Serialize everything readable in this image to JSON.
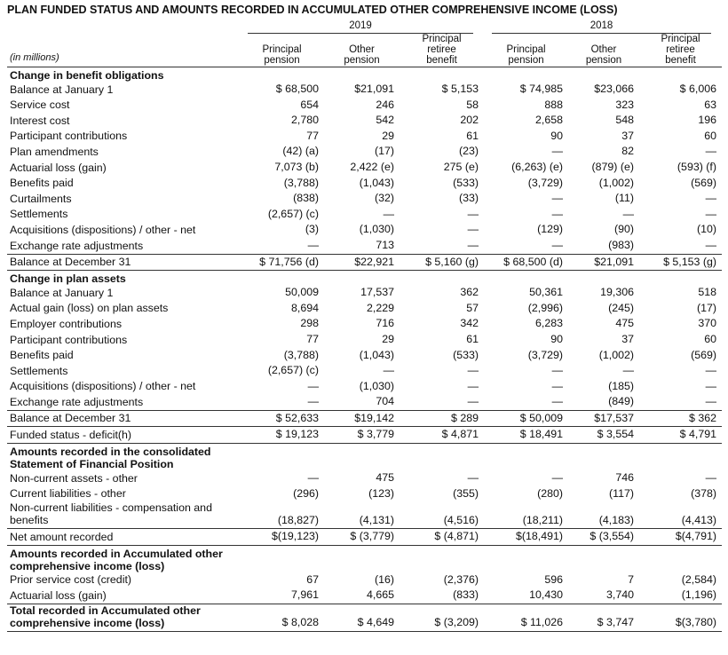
{
  "title": "PLAN FUNDED STATUS AND AMOUNTS RECORDED IN ACCUMULATED OTHER COMPREHENSIVE INCOME (LOSS)",
  "unit_note": "(in millions)",
  "years": [
    "2019",
    "2018"
  ],
  "column_headers": [
    "Principal pension",
    "Other pension",
    "Principal retiree benefit",
    "Principal pension",
    "Other pension",
    "Principal retiree benefit"
  ],
  "rows": [
    {
      "section": "Change in benefit obligations"
    },
    {
      "label": "Balance at January 1",
      "cells": [
        "$ 68,500",
        "$21,091",
        "$ 5,153",
        "$ 74,985",
        "$23,066",
        "$ 6,006"
      ]
    },
    {
      "label": "Service cost",
      "cells": [
        "654",
        "246",
        "58",
        "888",
        "323",
        "63"
      ]
    },
    {
      "label": "Interest cost",
      "cells": [
        "2,780",
        "542",
        "202",
        "2,658",
        "548",
        "196"
      ]
    },
    {
      "label": "Participant contributions",
      "cells": [
        "77",
        "29",
        "61",
        "90",
        "37",
        "60"
      ]
    },
    {
      "label": "Plan amendments",
      "cells": [
        "(42) (a)",
        "(17)",
        "(23)",
        "—",
        "82",
        "—"
      ]
    },
    {
      "label": "Actuarial loss (gain)",
      "cells": [
        "7,073 (b)",
        "2,422 (e)",
        "275 (e)",
        "(6,263) (e)",
        "(879) (e)",
        "(593) (f)"
      ]
    },
    {
      "label": "Benefits paid",
      "cells": [
        "(3,788)",
        "(1,043)",
        "(533)",
        "(3,729)",
        "(1,002)",
        "(569)"
      ]
    },
    {
      "label": "Curtailments",
      "cells": [
        "(838)",
        "(32)",
        "(33)",
        "—",
        "(11)",
        "—"
      ]
    },
    {
      "label": "Settlements",
      "cells": [
        "(2,657) (c)",
        "—",
        "—",
        "—",
        "—",
        "—"
      ]
    },
    {
      "label": "Acquisitions (dispositions) / other - net",
      "cells": [
        "(3)",
        "(1,030)",
        "—",
        "(129)",
        "(90)",
        "(10)"
      ]
    },
    {
      "label": "Exchange rate adjustments",
      "cells": [
        "—",
        "713",
        "—",
        "—",
        "(983)",
        "—"
      ]
    },
    {
      "label": "Balance at December 31",
      "cells": [
        "$ 71,756 (d)",
        "$22,921",
        "$ 5,160 (g)",
        "$ 68,500 (d)",
        "$21,091",
        "$ 5,153 (g)"
      ]
    },
    {
      "section": "Change in plan assets"
    },
    {
      "label": "Balance at January 1",
      "cells": [
        "50,009",
        "17,537",
        "362",
        "50,361",
        "19,306",
        "518"
      ]
    },
    {
      "label": "Actual gain (loss) on plan assets",
      "cells": [
        "8,694",
        "2,229",
        "57",
        "(2,996)",
        "(245)",
        "(17)"
      ]
    },
    {
      "label": "Employer contributions",
      "cells": [
        "298",
        "716",
        "342",
        "6,283",
        "475",
        "370"
      ]
    },
    {
      "label": "Participant contributions",
      "cells": [
        "77",
        "29",
        "61",
        "90",
        "37",
        "60"
      ]
    },
    {
      "label": "Benefits paid",
      "cells": [
        "(3,788)",
        "(1,043)",
        "(533)",
        "(3,729)",
        "(1,002)",
        "(569)"
      ]
    },
    {
      "label": "Settlements",
      "cells": [
        "(2,657) (c)",
        "—",
        "—",
        "—",
        "—",
        "—"
      ]
    },
    {
      "label": "Acquisitions (dispositions) / other - net",
      "cells": [
        "—",
        "(1,030)",
        "—",
        "—",
        "(185)",
        "—"
      ]
    },
    {
      "label": "Exchange rate adjustments",
      "cells": [
        "—",
        "704",
        "—",
        "—",
        "(849)",
        "—"
      ]
    },
    {
      "label": "Balance at December 31",
      "cells": [
        "$ 52,633",
        "$19,142",
        "$ 289",
        "$ 50,009",
        "$17,537",
        "$ 362"
      ]
    },
    {
      "label": "Funded status - deficit(h)",
      "cells": [
        "$ 19,123",
        "$ 3,779",
        "$ 4,871",
        "$ 18,491",
        "$ 3,554",
        "$ 4,791"
      ]
    },
    {
      "section": "Amounts recorded in the consolidated Statement of Financial Position"
    },
    {
      "label": "Non-current assets - other",
      "cells": [
        "—",
        "475",
        "—",
        "—",
        "746",
        "—"
      ]
    },
    {
      "label": "Current liabilities - other",
      "cells": [
        "(296)",
        "(123)",
        "(355)",
        "(280)",
        "(117)",
        "(378)"
      ]
    },
    {
      "label": "Non-current liabilities - compensation and benefits",
      "cells": [
        "(18,827)",
        "(4,131)",
        "(4,516)",
        "(18,211)",
        "(4,183)",
        "(4,413)"
      ]
    },
    {
      "label": "Net amount recorded",
      "cells": [
        "$(19,123)",
        "$ (3,779)",
        "$ (4,871)",
        "$(18,491)",
        "$ (3,554)",
        "$(4,791)"
      ]
    },
    {
      "section": "Amounts recorded in Accumulated other comprehensive income (loss)"
    },
    {
      "label": "Prior service cost (credit)",
      "cells": [
        "67",
        "(16)",
        "(2,376)",
        "596",
        "7",
        "(2,584)"
      ]
    },
    {
      "label": "Actuarial loss (gain)",
      "cells": [
        "7,961",
        "4,665",
        "(833)",
        "10,430",
        "3,740",
        "(1,196)"
      ]
    },
    {
      "label": "Total recorded in Accumulated other comprehensive income (loss)",
      "cells": [
        "$ 8,028",
        "$ 4,649",
        "$ (3,209)",
        "$ 11,026",
        "$ 3,747",
        "$(3,780)"
      ],
      "bold": true
    }
  ]
}
